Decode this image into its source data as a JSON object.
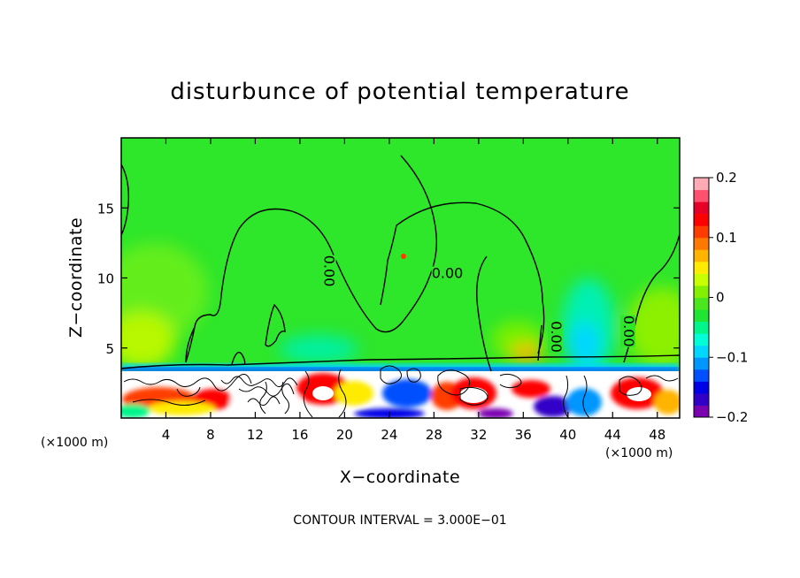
{
  "chart_data": {
    "type": "heatmap",
    "title": "disturbunce of potential temperature",
    "xlabel": "X−coordinate",
    "ylabel": "Z−coordinate",
    "x_unit": "(×1000 m)",
    "y_unit": "(×1000 m)",
    "xlim": [
      0,
      50
    ],
    "ylim": [
      0,
      20
    ],
    "x_ticks": [
      4,
      8,
      12,
      16,
      20,
      24,
      28,
      32,
      36,
      40,
      44,
      48
    ],
    "y_ticks": [
      5,
      10,
      15
    ],
    "colorbar": {
      "min": -0.2,
      "max": 0.2,
      "tick_values": [
        0.2,
        0.1,
        0,
        -0.1,
        -0.2
      ],
      "tick_labels": [
        "0.2",
        "0.1",
        "0",
        "−0.1",
        "−0.2"
      ],
      "colors": [
        "#7a00b0",
        "#3000c8",
        "#0000e6",
        "#0050ff",
        "#0096ff",
        "#00d7ff",
        "#00ffd7",
        "#00f58a",
        "#1ee632",
        "#4be61e",
        "#82f000",
        "#c8ff00",
        "#ffeb00",
        "#ffb400",
        "#ff7800",
        "#ff3c00",
        "#ff0000",
        "#e60028",
        "#ff5070",
        "#ffaab4"
      ]
    },
    "contour_labels": [
      {
        "text": "0.00",
        "x": 18.2,
        "z": 10.5
      },
      {
        "text": "0.00",
        "x": 29.2,
        "z": 10.0
      },
      {
        "text": "0.00",
        "x": 38.5,
        "z": 5.8
      },
      {
        "text": "0.00",
        "x": 45.0,
        "z": 6.2
      }
    ],
    "contour_interval": "CONTOUR INTERVAL = 3.000E−01",
    "background_value": 0.0
  }
}
